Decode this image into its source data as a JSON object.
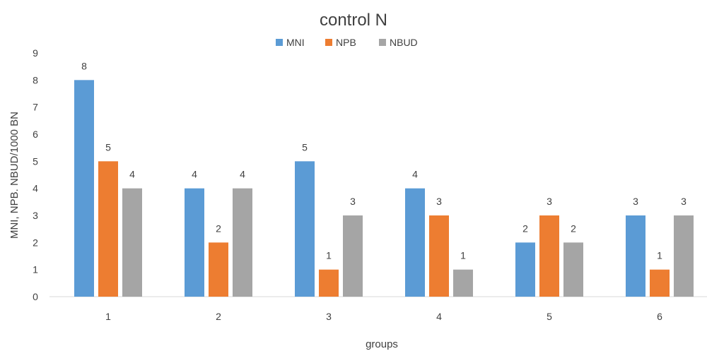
{
  "chart_data": {
    "type": "bar",
    "title": "control N",
    "xlabel": "groups",
    "ylabel": "MNI, NPB. NBUD/1000 BN",
    "categories": [
      "1",
      "2",
      "3",
      "4",
      "5",
      "6"
    ],
    "series": [
      {
        "name": "MNI",
        "color": "#5b9bd5",
        "values": [
          8,
          4,
          5,
          4,
          2,
          3
        ]
      },
      {
        "name": "NPB",
        "color": "#ed7d31",
        "values": [
          5,
          2,
          1,
          3,
          3,
          1
        ]
      },
      {
        "name": "NBUD",
        "color": "#a5a5a5",
        "values": [
          4,
          4,
          3,
          1,
          2,
          3
        ]
      }
    ],
    "ylim": [
      0,
      9
    ],
    "yticks": [
      0,
      1,
      2,
      3,
      4,
      5,
      6,
      7,
      8,
      9
    ],
    "grid": false,
    "legend_position": "top"
  }
}
